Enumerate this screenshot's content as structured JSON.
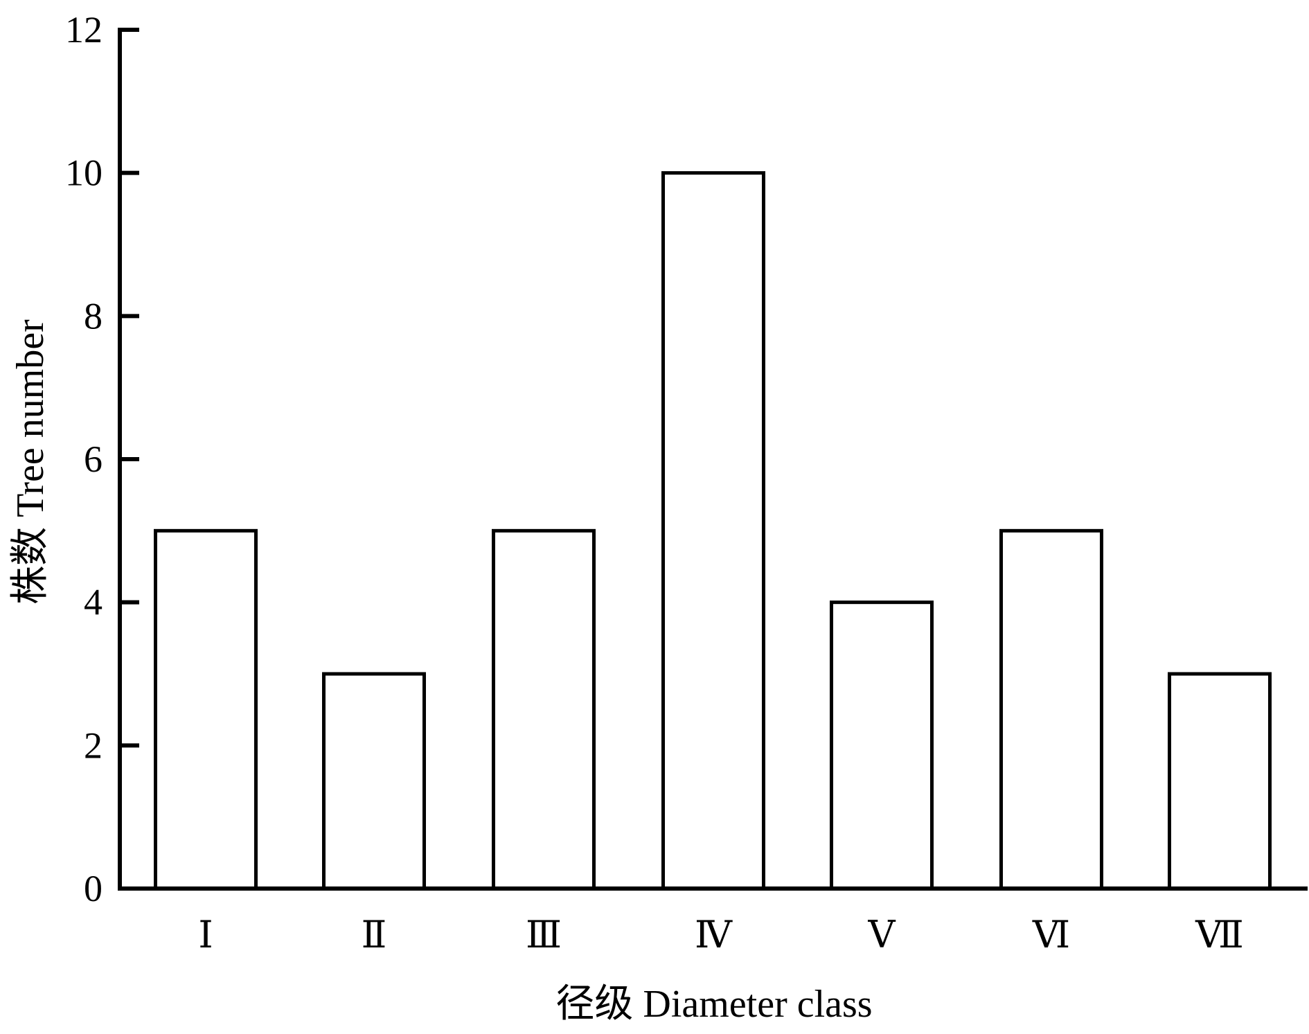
{
  "chart_data": {
    "type": "bar",
    "categories": [
      "Ⅰ",
      "Ⅱ",
      "Ⅲ",
      "Ⅳ",
      "Ⅴ",
      "Ⅵ",
      "Ⅶ"
    ],
    "values": [
      5,
      3,
      5,
      10,
      4,
      5,
      3
    ],
    "xlabel": "径级  Diameter class",
    "ylabel": "株数  Tree number",
    "ylim": [
      0,
      12
    ],
    "yticks": [
      0,
      2,
      4,
      6,
      8,
      10,
      12
    ],
    "ytick_labels": [
      "0",
      "2",
      "4",
      "6",
      "8",
      "10",
      "12"
    ],
    "grid": false,
    "bar_fill": "#ffffff",
    "bar_stroke": "#000000"
  }
}
